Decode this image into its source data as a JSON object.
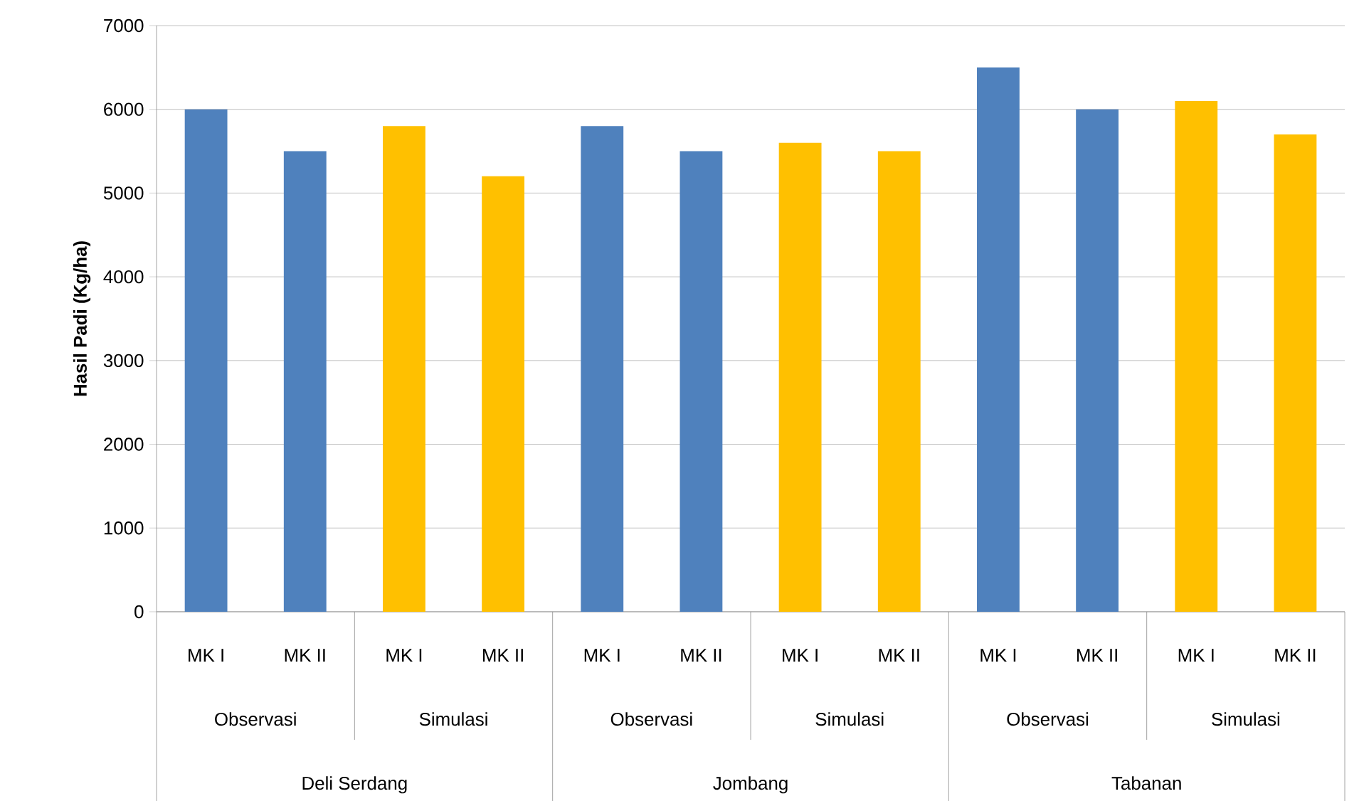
{
  "chart_data": {
    "type": "bar",
    "ylabel": "Hasil Padi (Kg/ha)",
    "categories": [
      "MK I",
      "MK II",
      "MK I",
      "MK II",
      "MK I",
      "MK II",
      "MK I",
      "MK II",
      "MK I",
      "MK II",
      "MK I",
      "MK II"
    ],
    "values": [
      6000,
      5500,
      5800,
      5200,
      5800,
      5500,
      5600,
      5500,
      6500,
      6000,
      6100,
      5700
    ],
    "colors": [
      "#4f81bd",
      "#4f81bd",
      "#ffc000",
      "#ffc000",
      "#4f81bd",
      "#4f81bd",
      "#ffc000",
      "#ffc000",
      "#4f81bd",
      "#4f81bd",
      "#ffc000",
      "#ffc000"
    ],
    "annotations": [
      "Observasi",
      "Simulasi",
      "Observasi",
      "Simulasi",
      "Observasi",
      "Simulasi",
      "Deli Serdang",
      "Jombang",
      "Tabanan"
    ],
    "ylim": [
      0,
      7000
    ],
    "yticks": [
      0,
      1000,
      2000,
      3000,
      4000,
      5000,
      6000,
      7000
    ],
    "grid": "y"
  }
}
